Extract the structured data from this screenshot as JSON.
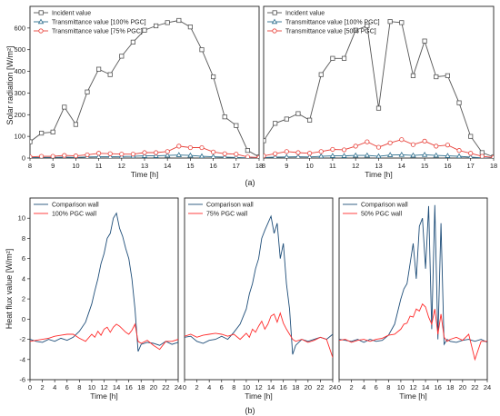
{
  "labels": {
    "a": "(a)",
    "b": "(b)",
    "top_ylabel": "Solar radiation [W/m²]",
    "bottom_ylabel": "Heat flux value [W/m²]",
    "time_label": "Time [h]"
  },
  "chart_data": [
    {
      "type": "line",
      "panel": "a-left",
      "xlabel": "Time [h]",
      "ylabel": "Solar radiation [W/m²]",
      "xlim": [
        8,
        18
      ],
      "ylim": [
        0,
        700
      ],
      "xticks": [
        8,
        9,
        10,
        11,
        12,
        13,
        14,
        15,
        16,
        17,
        18
      ],
      "yticks": [
        0,
        100,
        200,
        300,
        400,
        500,
        600
      ],
      "legend": "top-left",
      "x": [
        8,
        8.5,
        9,
        9.5,
        10,
        10.5,
        11,
        11.5,
        12,
        12.5,
        13,
        13.5,
        14,
        14.5,
        15,
        15.5,
        16,
        16.5,
        17,
        17.5,
        18
      ],
      "series": [
        {
          "name": "Incident value",
          "color": "#555555",
          "marker": "square",
          "values": [
            75,
            115,
            120,
            235,
            155,
            305,
            410,
            385,
            470,
            535,
            590,
            610,
            625,
            635,
            605,
            500,
            375,
            190,
            150,
            35,
            5
          ]
        },
        {
          "name": "Transmittance value [100% PGC]",
          "color": "#2b6d8c",
          "marker": "triangle",
          "values": [
            2,
            3,
            3,
            4,
            3,
            5,
            6,
            6,
            7,
            8,
            10,
            10,
            12,
            14,
            12,
            8,
            6,
            4,
            3,
            1,
            0
          ]
        },
        {
          "name": "Transmittance value [75% PGC]",
          "color": "#e8413a",
          "marker": "circle",
          "values": [
            5,
            8,
            8,
            12,
            10,
            15,
            22,
            20,
            18,
            18,
            25,
            25,
            30,
            55,
            48,
            48,
            28,
            20,
            18,
            5,
            2
          ]
        }
      ]
    },
    {
      "type": "line",
      "panel": "a-right",
      "xlabel": "Time [h]",
      "xlim": [
        8,
        18
      ],
      "ylim": [
        0,
        700
      ],
      "xticks": [
        8,
        9,
        10,
        11,
        12,
        13,
        14,
        15,
        16,
        17,
        18
      ],
      "legend": "top-left",
      "x": [
        8,
        8.5,
        9,
        9.5,
        10,
        10.5,
        11,
        11.5,
        12,
        12.5,
        13,
        13.5,
        14,
        14.5,
        15,
        15.5,
        16,
        16.5,
        17,
        17.5,
        18
      ],
      "series": [
        {
          "name": "Incident value",
          "color": "#555555",
          "marker": "square",
          "values": [
            80,
            160,
            180,
            205,
            175,
            385,
            460,
            460,
            590,
            610,
            230,
            630,
            625,
            380,
            540,
            375,
            380,
            255,
            100,
            25,
            5
          ]
        },
        {
          "name": "Transmittance value [100% PGC]",
          "color": "#2b6d8c",
          "marker": "triangle",
          "values": [
            2,
            4,
            5,
            6,
            5,
            8,
            10,
            10,
            12,
            12,
            8,
            14,
            15,
            12,
            15,
            12,
            10,
            8,
            4,
            1,
            0
          ]
        },
        {
          "name": "Transmittance value [50% PGC]",
          "color": "#e8413a",
          "marker": "circle",
          "values": [
            10,
            20,
            30,
            25,
            22,
            30,
            40,
            38,
            55,
            75,
            50,
            70,
            85,
            62,
            78,
            55,
            60,
            35,
            22,
            8,
            2
          ]
        }
      ]
    },
    {
      "type": "line",
      "panel": "b-1",
      "xlabel": "Time [h]",
      "ylabel": "Heat flux value [W/m²]",
      "xlim": [
        0,
        24
      ],
      "ylim": [
        -6,
        12
      ],
      "xticks": [
        0,
        2,
        4,
        6,
        8,
        10,
        12,
        14,
        16,
        18,
        20,
        22,
        24
      ],
      "yticks": [
        -6,
        -4,
        -2,
        0,
        2,
        4,
        6,
        8,
        10
      ],
      "legend": "top-left",
      "x": [
        0,
        1,
        2,
        3,
        4,
        5,
        6,
        7,
        8,
        9,
        10,
        10.5,
        11,
        11.5,
        12,
        12.5,
        13,
        13.5,
        14,
        14.5,
        15,
        15.5,
        16,
        16.5,
        17,
        17.5,
        18,
        19,
        20,
        21,
        22,
        23,
        24
      ],
      "series": [
        {
          "name": "Comparison wall",
          "color": "#1f4e79",
          "values": [
            -2.0,
            -2.2,
            -2.3,
            -2.0,
            -2.2,
            -1.9,
            -2.1,
            -1.8,
            -1.2,
            -0.3,
            1.5,
            2.8,
            4.0,
            5.5,
            6.5,
            8.0,
            8.5,
            10.0,
            10.5,
            9.0,
            8.2,
            7.0,
            6.0,
            4.0,
            1.0,
            -3.2,
            -2.5,
            -2.3,
            -2.4,
            -2.6,
            -2.2,
            -2.5,
            -2.3
          ]
        },
        {
          "name": "100% PGC wall",
          "color": "#ff2b2b",
          "values": [
            -2.2,
            -2.1,
            -2.0,
            -1.9,
            -1.7,
            -1.6,
            -1.5,
            -1.5,
            -1.9,
            -2.2,
            -1.5,
            -1.8,
            -1.2,
            -1.6,
            -1.0,
            -0.8,
            -1.3,
            -0.8,
            -0.5,
            -0.7,
            -1.0,
            -1.3,
            -1.5,
            -1.1,
            -0.5,
            -2.2,
            -2.4,
            -2.1,
            -2.6,
            -3.0,
            -2.2,
            -2.2,
            -2.0
          ]
        }
      ]
    },
    {
      "type": "line",
      "panel": "b-2",
      "xlabel": "Time [h]",
      "xlim": [
        0,
        24
      ],
      "ylim": [
        -6,
        12
      ],
      "xticks": [
        0,
        2,
        4,
        6,
        8,
        10,
        12,
        14,
        16,
        18,
        20,
        22,
        24
      ],
      "legend": "top-left",
      "x": [
        0,
        1,
        2,
        3,
        4,
        5,
        6,
        7,
        8,
        9,
        10,
        10.5,
        11,
        11.5,
        12,
        12.5,
        13,
        13.5,
        14,
        14.5,
        15,
        15.5,
        16,
        16.5,
        17,
        17.5,
        18,
        19,
        20,
        21,
        22,
        23,
        24
      ],
      "series": [
        {
          "name": "Comparison wall",
          "color": "#1f4e79",
          "values": [
            -1.8,
            -1.7,
            -2.2,
            -2.4,
            -2.1,
            -2.0,
            -1.7,
            -2.0,
            -1.3,
            -0.5,
            1.0,
            2.5,
            3.5,
            5.0,
            6.0,
            8.0,
            8.8,
            9.5,
            10.2,
            8.5,
            9.5,
            6.0,
            7.5,
            3.5,
            1.0,
            -3.5,
            -2.6,
            -2.0,
            -2.2,
            -2.0,
            -1.8,
            -2.0,
            -1.5
          ]
        },
        {
          "name": "75% PGC wall",
          "color": "#ff2b2b",
          "values": [
            -1.7,
            -1.5,
            -1.8,
            -1.6,
            -1.5,
            -1.4,
            -1.5,
            -1.7,
            -1.5,
            -2.0,
            -1.4,
            -1.8,
            -1.0,
            -1.3,
            -0.7,
            -0.2,
            -1.0,
            -0.5,
            0.3,
            0.5,
            -0.3,
            0.6,
            -0.4,
            -1.0,
            -1.5,
            -2.0,
            -2.2,
            -2.0,
            -2.3,
            -2.1,
            -1.8,
            -2.0,
            -3.8
          ]
        }
      ]
    },
    {
      "type": "line",
      "panel": "b-3",
      "xlabel": "Time [h]",
      "xlim": [
        0,
        24
      ],
      "ylim": [
        -6,
        12
      ],
      "xticks": [
        0,
        2,
        4,
        6,
        8,
        10,
        12,
        14,
        16,
        18,
        20,
        22,
        24
      ],
      "legend": "top-left",
      "x": [
        0,
        1,
        2,
        3,
        4,
        5,
        6,
        7,
        8,
        9,
        10,
        10.5,
        11,
        11.5,
        12,
        12.5,
        13,
        13.5,
        14,
        14.5,
        15,
        15.5,
        16,
        16.5,
        17,
        17.5,
        18,
        19,
        20,
        21,
        22,
        23,
        24
      ],
      "series": [
        {
          "name": "Comparison wall",
          "color": "#1f4e79",
          "values": [
            -2.0,
            -2.1,
            -2.2,
            -2.0,
            -2.3,
            -2.0,
            -2.2,
            -2.1,
            -1.6,
            -0.5,
            2.0,
            3.0,
            3.5,
            5.5,
            7.5,
            4.0,
            9.2,
            10.0,
            5.0,
            11.2,
            -1.0,
            11.3,
            -2.0,
            9.5,
            -2.5,
            -2.0,
            -2.2,
            -2.3,
            -2.1,
            -2.0,
            -2.2,
            -2.0,
            -2.3
          ]
        },
        {
          "name": "50% PGC wall",
          "color": "#ff2b2b",
          "values": [
            -2.1,
            -2.0,
            -2.3,
            -2.1,
            -2.0,
            -2.2,
            -2.0,
            -1.9,
            -1.6,
            -1.5,
            -1.0,
            -0.5,
            -0.4,
            0.3,
            0.2,
            1.0,
            0.8,
            1.5,
            1.2,
            0.2,
            -0.5,
            1.0,
            -1.5,
            0.5,
            -1.8,
            -2.2,
            -2.0,
            -1.8,
            -2.1,
            -1.5,
            -4.0,
            -2.2,
            -2.2
          ]
        }
      ]
    }
  ]
}
